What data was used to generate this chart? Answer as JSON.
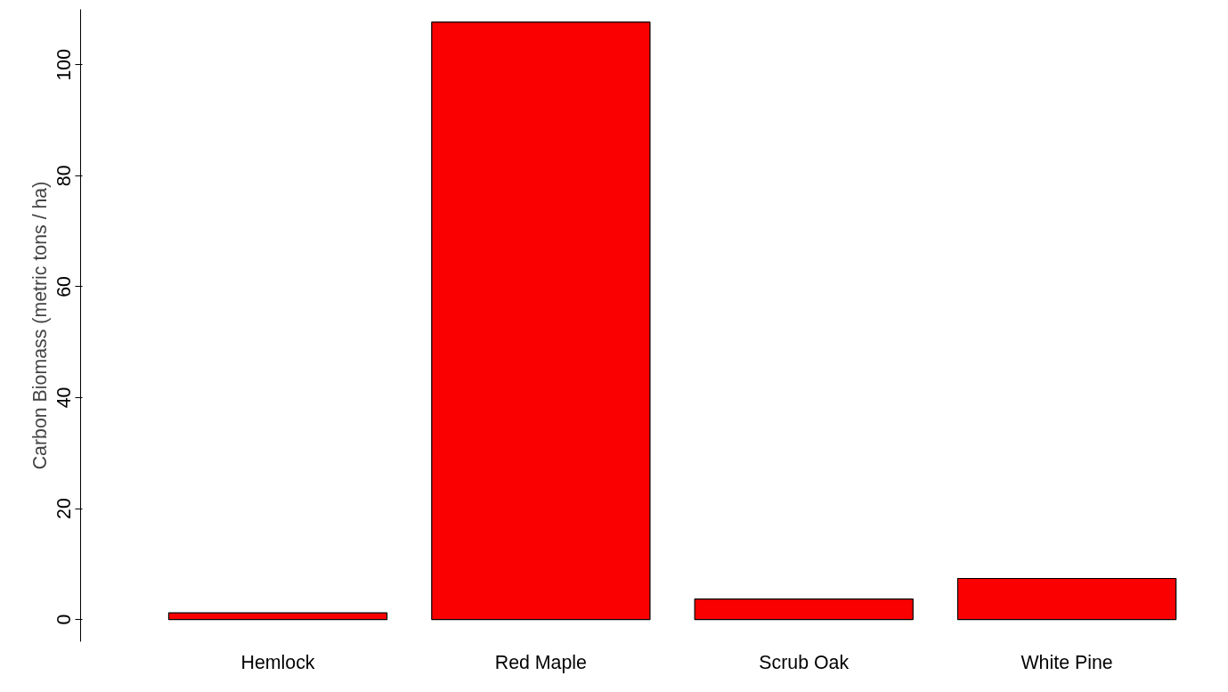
{
  "chart_data": {
    "type": "bar",
    "ylabel": "Carbon Biomass (metric tons / ha)",
    "categories": [
      "Hemlock",
      "Red Maple",
      "Scrub Oak",
      "White Pine"
    ],
    "values": [
      1.2,
      107.7,
      3.7,
      7.4
    ],
    "color": "#fa0000",
    "ylim": [
      -4,
      110
    ],
    "yticks": [
      0,
      20,
      40,
      60,
      80,
      100
    ],
    "grid": false
  }
}
